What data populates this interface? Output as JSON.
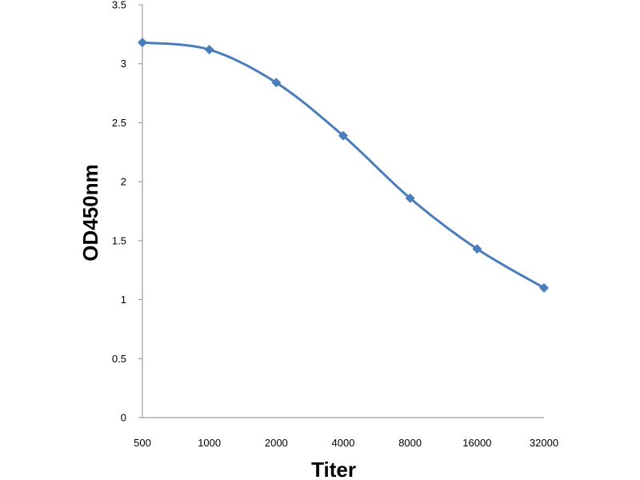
{
  "chart_data": {
    "type": "line",
    "title": "",
    "xlabel": "Titer",
    "ylabel": "OD450nm",
    "categories": [
      "500",
      "1000",
      "2000",
      "4000",
      "8000",
      "16000",
      "32000"
    ],
    "series": [
      {
        "values": [
          3.18,
          3.12,
          2.84,
          2.39,
          1.86,
          1.43,
          1.1
        ],
        "color": "#4a7ebb",
        "marker": "diamond"
      }
    ],
    "ylim": [
      0,
      3.5
    ],
    "yticks": [
      "0",
      "0.5",
      "1",
      "1.5",
      "2",
      "2.5",
      "3",
      "3.5"
    ],
    "grid": false,
    "legend": "none"
  }
}
